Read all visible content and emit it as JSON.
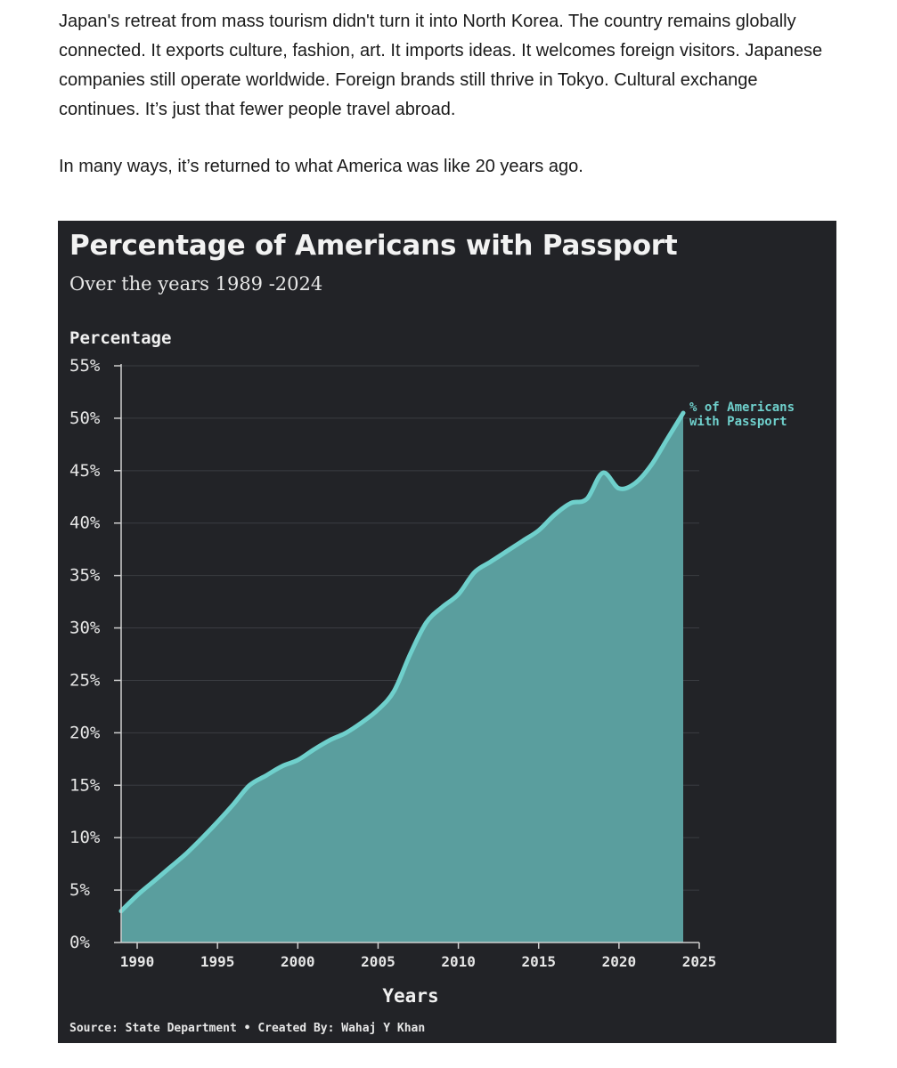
{
  "article": {
    "paragraphs": [
      "Japan's retreat from mass tourism didn't turn it into North Korea. The country remains globally connected. It exports culture, fashion, art. It imports ideas. It welcomes foreign visitors. Japanese companies still operate worldwide. Foreign brands still thrive in Tokyo. Cultural exchange continues. It’s just that fewer people travel abroad.",
      "In many ways, it’s returned to what America was like 20 years ago."
    ]
  },
  "colors": {
    "background": "#222327",
    "line": "#6fd0cc",
    "area": "#5a9e9e",
    "grid": "#3b3d42",
    "text": "#e6e6e6"
  },
  "chart_data": {
    "type": "area",
    "title": "Percentage of Americans with Passport",
    "subtitle": "Over the years 1989 -2024",
    "ylabel": "Percentage",
    "xlabel": "Years",
    "xlim": [
      1989,
      2025
    ],
    "ylim": [
      0,
      55
    ],
    "x_ticks": [
      1990,
      1995,
      2000,
      2005,
      2010,
      2015,
      2020,
      2025
    ],
    "y_ticks": [
      0,
      5,
      10,
      15,
      20,
      25,
      30,
      35,
      40,
      45,
      50,
      55
    ],
    "y_tick_labels": [
      "0%",
      "5%",
      "10%",
      "15%",
      "20%",
      "25%",
      "30%",
      "35%",
      "40%",
      "45%",
      "50%",
      "55%"
    ],
    "series": [
      {
        "name": "% of Americans with Passport",
        "label_lines": [
          "% of Americans",
          "with Passport"
        ],
        "x": [
          1989,
          1990,
          1991,
          1992,
          1993,
          1994,
          1995,
          1996,
          1997,
          1998,
          1999,
          2000,
          2001,
          2002,
          2003,
          2004,
          2005,
          2006,
          2007,
          2008,
          2009,
          2010,
          2011,
          2012,
          2013,
          2014,
          2015,
          2016,
          2017,
          2018,
          2019,
          2020,
          2021,
          2022,
          2023,
          2024
        ],
        "values": [
          3,
          4.5,
          5.8,
          7.1,
          8.4,
          9.9,
          11.5,
          13.2,
          15.0,
          15.9,
          16.8,
          17.4,
          18.4,
          19.3,
          20.0,
          21.0,
          22.2,
          24.0,
          27.5,
          30.5,
          32.0,
          33.2,
          35.3,
          36.3,
          37.3,
          38.3,
          39.3,
          40.8,
          41.9,
          42.3,
          44.8,
          43.3,
          43.8,
          45.5,
          48.0,
          50.5
        ]
      }
    ]
  },
  "source_line": {
    "source": "Source: State Department",
    "separator": "•",
    "credit": "Created By: Wahaj Y Khan"
  }
}
